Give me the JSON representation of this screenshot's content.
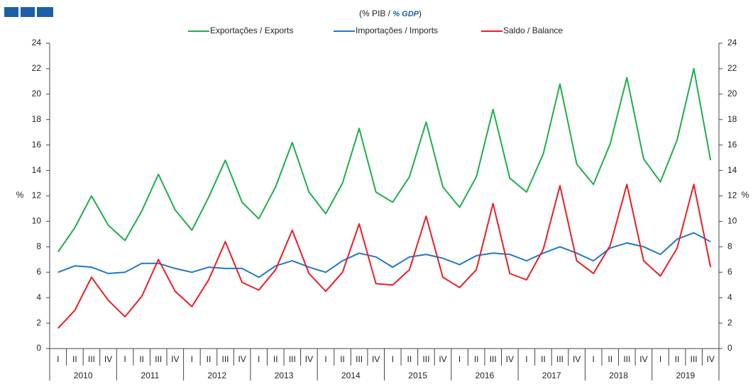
{
  "chart_data": {
    "type": "line",
    "subtitle_parts": [
      "(% PIB / ",
      "% GDP",
      ")"
    ],
    "ylabel": "%",
    "categories": [
      "I",
      "II",
      "III",
      "IV",
      "I",
      "II",
      "III",
      "IV",
      "I",
      "II",
      "III",
      "IV",
      "I",
      "II",
      "III",
      "IV",
      "I",
      "II",
      "III",
      "IV",
      "I",
      "II",
      "III",
      "IV",
      "I",
      "II",
      "III",
      "IV",
      "I",
      "II",
      "III",
      "IV",
      "I",
      "II",
      "III",
      "IV",
      "I",
      "II",
      "III",
      "IV"
    ],
    "groups": [
      "2010",
      "2011",
      "2012",
      "2013",
      "2014",
      "2015",
      "2016",
      "2017",
      "2018",
      "2019"
    ],
    "series": [
      {
        "name": "Exportações / Exports",
        "color": "#1fae4b",
        "values": [
          7.6,
          9.5,
          12.0,
          9.7,
          8.5,
          10.8,
          13.7,
          10.9,
          9.3,
          11.9,
          14.8,
          11.5,
          10.2,
          12.7,
          16.2,
          12.3,
          10.6,
          13.0,
          17.3,
          12.3,
          11.5,
          13.5,
          17.8,
          12.7,
          11.1,
          13.5,
          18.8,
          13.4,
          12.3,
          15.3,
          20.8,
          14.5,
          12.9,
          16.1,
          21.3,
          14.9,
          13.1,
          16.4,
          22.0,
          14.8
        ]
      },
      {
        "name": "Importações / Imports",
        "color": "#1f78c8",
        "values": [
          6.0,
          6.5,
          6.4,
          5.9,
          6.0,
          6.7,
          6.7,
          6.3,
          6.0,
          6.4,
          6.3,
          6.3,
          5.6,
          6.5,
          6.9,
          6.4,
          6.0,
          6.9,
          7.5,
          7.2,
          6.4,
          7.2,
          7.4,
          7.1,
          6.6,
          7.3,
          7.5,
          7.4,
          6.9,
          7.5,
          8.0,
          7.5,
          6.9,
          7.9,
          8.3,
          8.0,
          7.4,
          8.6,
          9.1,
          8.4
        ]
      },
      {
        "name": "Saldo / Balance",
        "color": "#ee1c25",
        "values": [
          1.6,
          3.0,
          5.6,
          3.8,
          2.5,
          4.1,
          7.0,
          4.5,
          3.3,
          5.4,
          8.4,
          5.2,
          4.6,
          6.2,
          9.3,
          5.9,
          4.5,
          6.0,
          9.8,
          5.1,
          5.0,
          6.2,
          10.4,
          5.6,
          4.8,
          6.2,
          11.4,
          5.9,
          5.4,
          7.8,
          12.8,
          6.9,
          5.9,
          8.1,
          12.9,
          6.9,
          5.7,
          7.9,
          12.9,
          6.4
        ]
      }
    ],
    "ylim": [
      0,
      24
    ],
    "yticks": [
      0,
      2,
      4,
      6,
      8,
      10,
      12,
      14,
      16,
      18,
      20,
      22,
      24
    ],
    "y2lim": [
      0,
      24
    ],
    "y2ticks": [
      0,
      2,
      4,
      6,
      8,
      10,
      12,
      14,
      16,
      18,
      20,
      22,
      24
    ],
    "grid": false
  }
}
